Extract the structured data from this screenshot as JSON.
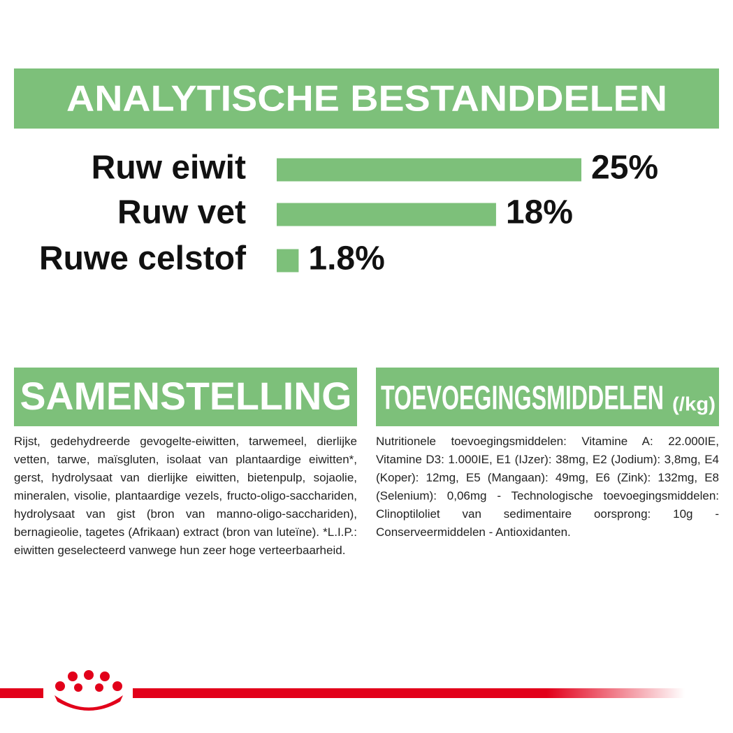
{
  "chart_data": {
    "type": "bar",
    "title": "ANALYTISCHE BESTANDDELEN",
    "categories": [
      "Ruw eiwit",
      "Ruw vet",
      "Ruwe celstof"
    ],
    "values": [
      25,
      18,
      1.8
    ],
    "value_labels": [
      "25%",
      "18%",
      "1.8%"
    ],
    "color": "#7dc07a"
  },
  "composition": {
    "title": "SAMENSTELLING",
    "text": "Rijst, gedehydreerde gevogelte-eiwitten, tarwemeel, dierlijke vetten, tarwe, maïsgluten, isolaat van plantaardige eiwitten*, gerst, hydrolysaat van dierlijke eiwitten, bietenpulp, sojaolie, mineralen, visolie, plantaardige vezels, fructo-oligo-sacchariden, hydrolysaat van gist (bron van manno-oligo-sacchariden), bernagieolie, tagetes (Afrikaan) extract (bron van luteïne).",
    "note": "*L.I.P.: eiwitten geselecteerd vanwege hun zeer hoge verteerbaarheid."
  },
  "additives": {
    "title": "TOEVOEGINGSMIDDELEN",
    "unit": "(/kg)",
    "text": "Nutritionele toevoegingsmiddelen: Vitamine A: 22.000IE, Vitamine D3: 1.000IE, E1 (IJzer): 38mg, E2 (Jodium): 3,8mg, E4 (Koper): 12mg, E5 (Mangaan): 49mg, E6 (Zink): 132mg, E8 (Selenium): 0,06mg - Technologische toevoegingsmiddelen: Clinoptiloliet van sedimentaire oorsprong: 10g - Conserveermiddelen - Antioxidanten."
  }
}
